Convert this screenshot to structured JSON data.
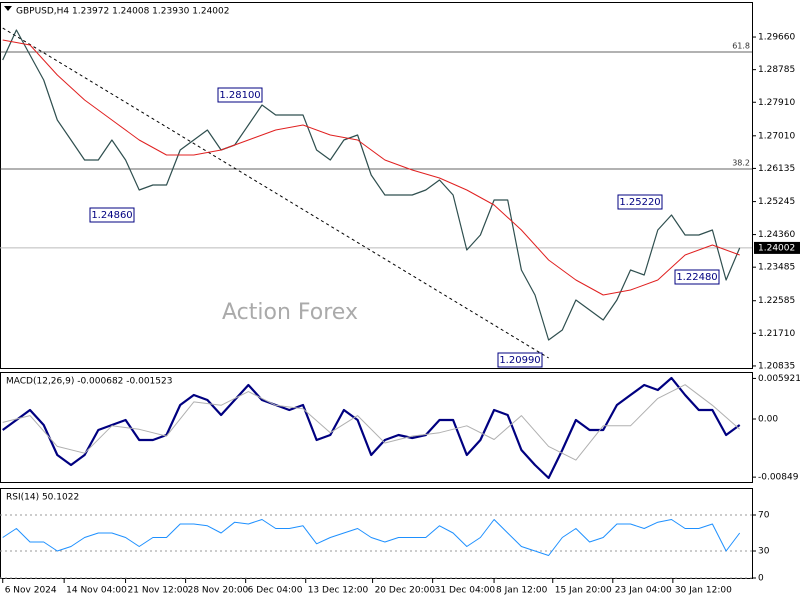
{
  "chart_data": [
    {
      "type": "line",
      "title": "GBPUSD,H4 1.23972 1.24008 1.23930 1.24002",
      "watermark": "Action Forex",
      "xlim": [
        -2,
        549
      ],
      "ylim": [
        1.2078,
        1.306
      ],
      "grid": false,
      "yticks": [
        {
          "value": 1.2966,
          "label": "1.29660"
        },
        1.28785,
        {
          "value": 1.2791,
          "label": "1.27910"
        },
        {
          "value": 1.2701,
          "label": "1.27010"
        },
        1.26135,
        1.25245,
        {
          "value": 1.2436,
          "label": "1.24360"
        },
        1.23485,
        1.22585,
        {
          "value": 1.2171,
          "label": "1.21710"
        },
        1.20835
      ],
      "xticks": [
        {
          "value": 0,
          "label": "6 Nov 2024"
        },
        {
          "value": 45,
          "label": "14 Nov 04:00"
        },
        {
          "value": 90,
          "label": "21 Nov 12:00"
        },
        {
          "value": 134,
          "label": "28 Nov 20:00"
        },
        {
          "value": 178,
          "label": "6 Dec 04:00"
        },
        {
          "value": 222,
          "label": "13 Dec 12:00"
        },
        {
          "value": 271,
          "label": "20 Dec 20:00"
        },
        {
          "value": 315,
          "label": "31 Dec 04:00"
        },
        {
          "value": 360,
          "label": "8 Jan 12:00"
        },
        {
          "value": 403,
          "label": "15 Jan 20:00"
        },
        {
          "value": 447,
          "label": "23 Jan 04:00"
        },
        {
          "value": 491,
          "label": "30 Jan 12:00"
        }
      ],
      "series": [
        {
          "color": "#2f4f4f",
          "width": 1.2,
          "x": [
            0,
            10,
            20,
            30,
            40,
            50,
            60,
            70,
            80,
            90,
            100,
            110,
            120,
            130,
            140,
            150,
            160,
            170,
            180,
            190,
            200,
            210,
            220,
            230,
            240,
            250,
            260,
            270,
            280,
            290,
            300,
            310,
            320,
            330,
            340,
            350,
            360,
            370,
            380,
            390,
            400,
            410,
            420,
            430,
            440,
            450,
            460,
            470,
            480,
            490,
            500,
            510,
            520,
            530,
            540
          ],
          "values": [
            1.29044,
            1.29849,
            1.29178,
            1.28507,
            1.27434,
            1.26897,
            1.26361,
            1.26361,
            1.26897,
            1.26361,
            1.25556,
            1.2569,
            1.2569,
            1.26629,
            1.26897,
            1.27166,
            1.26629,
            1.26763,
            1.273,
            1.27837,
            1.27568,
            1.27568,
            1.27568,
            1.26629,
            1.26361,
            1.26897,
            1.27032,
            1.25958,
            1.25422,
            1.25422,
            1.25422,
            1.25556,
            1.25824,
            1.25422,
            1.23946,
            1.24349,
            1.25288,
            1.25288,
            1.2341,
            1.22739,
            1.21531,
            1.218,
            1.22605,
            1.22336,
            1.22068,
            1.22605,
            1.2341,
            1.23275,
            1.24483,
            1.24885,
            1.24349,
            1.24349,
            1.24483,
            1.23141,
            1.24002
          ]
        },
        {
          "color": "#e02020",
          "width": 1,
          "x": [
            0,
            20,
            40,
            60,
            80,
            100,
            120,
            140,
            160,
            180,
            200,
            220,
            240,
            260,
            280,
            300,
            320,
            340,
            360,
            380,
            400,
            420,
            440,
            460,
            480,
            500,
            520,
            540
          ],
          "values": [
            1.2958,
            1.29446,
            1.28641,
            1.27971,
            1.27434,
            1.26897,
            1.26495,
            1.26495,
            1.26629,
            1.26897,
            1.27166,
            1.273,
            1.27032,
            1.26897,
            1.26361,
            1.26093,
            1.25878,
            1.25556,
            1.25153,
            1.24483,
            1.23678,
            1.23141,
            1.22739,
            1.22873,
            1.23141,
            1.23812,
            1.2408,
            1.23812
          ]
        }
      ],
      "levels": [
        {
          "value": 1.29259,
          "label": "61.8"
        },
        {
          "value": 1.26119,
          "label": "38.2"
        }
      ],
      "last_price": 1.24002,
      "trendline": {
        "x": [
          0,
          400
        ],
        "values": [
          1.29902,
          1.21049
        ]
      },
      "annotations": [
        "1.28100",
        "1.24860",
        "1.25220",
        "1.22480",
        "1.20990"
      ]
    },
    {
      "type": "line",
      "title": "MACD(12,26,9) -0.000682 -0.001523",
      "xlim": [
        -2,
        549
      ],
      "ylim": [
        -0.0092,
        0.00686
      ],
      "grid": false,
      "yticks": [
        0.005921,
        {
          "value": 0,
          "label": "0.00"
        },
        -0.00849
      ],
      "series": [
        {
          "color": "#000080",
          "width": 2.2,
          "x": [
            0,
            10,
            20,
            30,
            40,
            50,
            60,
            70,
            80,
            90,
            100,
            110,
            120,
            130,
            140,
            150,
            160,
            170,
            180,
            190,
            200,
            210,
            220,
            230,
            240,
            250,
            260,
            270,
            280,
            290,
            300,
            310,
            320,
            330,
            340,
            350,
            360,
            370,
            380,
            390,
            400,
            410,
            420,
            430,
            440,
            450,
            460,
            470,
            480,
            490,
            500,
            510,
            520,
            530,
            540
          ],
          "values": [
            -0.00161,
            -0.00015,
            0.00131,
            -0.00088,
            -0.00526,
            -0.00672,
            -0.00526,
            -0.00161,
            -0.00088,
            -0.00015,
            -0.00307,
            -0.00307,
            -0.00234,
            0.00204,
            0.0035,
            0.00277,
            0.00058,
            0.00277,
            0.00496,
            0.00277,
            0.00204,
            0.00131,
            0.00204,
            -0.00307,
            -0.00234,
            0.00131,
            -0.00015,
            -0.00526,
            -0.00307,
            -0.00234,
            -0.00277,
            -0.00234,
            -0.00015,
            -0.00015,
            -0.00526,
            -0.00307,
            0.00131,
            0.00058,
            -0.00453,
            -0.00672,
            -0.00861,
            -0.00453,
            -0.00015,
            -0.00161,
            -0.00161,
            0.00204,
            0.0035,
            0.00496,
            0.00423,
            0.00599,
            0.0035,
            0.00131,
            0.00131,
            -0.00234,
            -0.00088
          ]
        },
        {
          "color": "#b0b0b0",
          "width": 1,
          "x": [
            0,
            20,
            40,
            60,
            80,
            100,
            120,
            140,
            160,
            180,
            200,
            220,
            240,
            260,
            280,
            300,
            320,
            340,
            360,
            380,
            400,
            420,
            440,
            460,
            480,
            500,
            520,
            540
          ],
          "values": [
            -0.0005,
            0.0005,
            -0.004,
            -0.005,
            -0.001,
            -0.0015,
            -0.0025,
            0.0025,
            0.002,
            0.004,
            0.002,
            0.0015,
            -0.002,
            0.0005,
            -0.0035,
            -0.0025,
            -0.002,
            -0.001,
            -0.003,
            0.0005,
            -0.004,
            -0.006,
            -0.001,
            -0.001,
            0.003,
            0.005,
            0.002,
            -0.0015
          ]
        }
      ]
    },
    {
      "type": "line",
      "title": "RSI(14) 50.1022",
      "xlim": [
        -2,
        549
      ],
      "ylim": [
        0,
        100
      ],
      "grid": true,
      "yticks": [
        70,
        30,
        0
      ],
      "series": [
        {
          "color": "#1e90ff",
          "width": 1,
          "x": [
            0,
            10,
            20,
            30,
            40,
            50,
            60,
            70,
            80,
            90,
            100,
            110,
            120,
            130,
            140,
            150,
            160,
            170,
            180,
            190,
            200,
            210,
            220,
            230,
            240,
            250,
            260,
            270,
            280,
            290,
            300,
            310,
            320,
            330,
            340,
            350,
            360,
            370,
            380,
            390,
            400,
            410,
            420,
            430,
            440,
            450,
            460,
            470,
            480,
            490,
            500,
            510,
            520,
            530,
            540
          ],
          "values": [
            45,
            55,
            40,
            40,
            30,
            35,
            45,
            50,
            50,
            45,
            35,
            45,
            45,
            60,
            60,
            58,
            50,
            62,
            60,
            65,
            55,
            55,
            58,
            38,
            45,
            50,
            55,
            45,
            40,
            45,
            45,
            45,
            58,
            50,
            35,
            45,
            65,
            50,
            35,
            30,
            25,
            45,
            55,
            40,
            45,
            60,
            60,
            55,
            62,
            65,
            55,
            55,
            60,
            30,
            50
          ]
        }
      ]
    }
  ]
}
